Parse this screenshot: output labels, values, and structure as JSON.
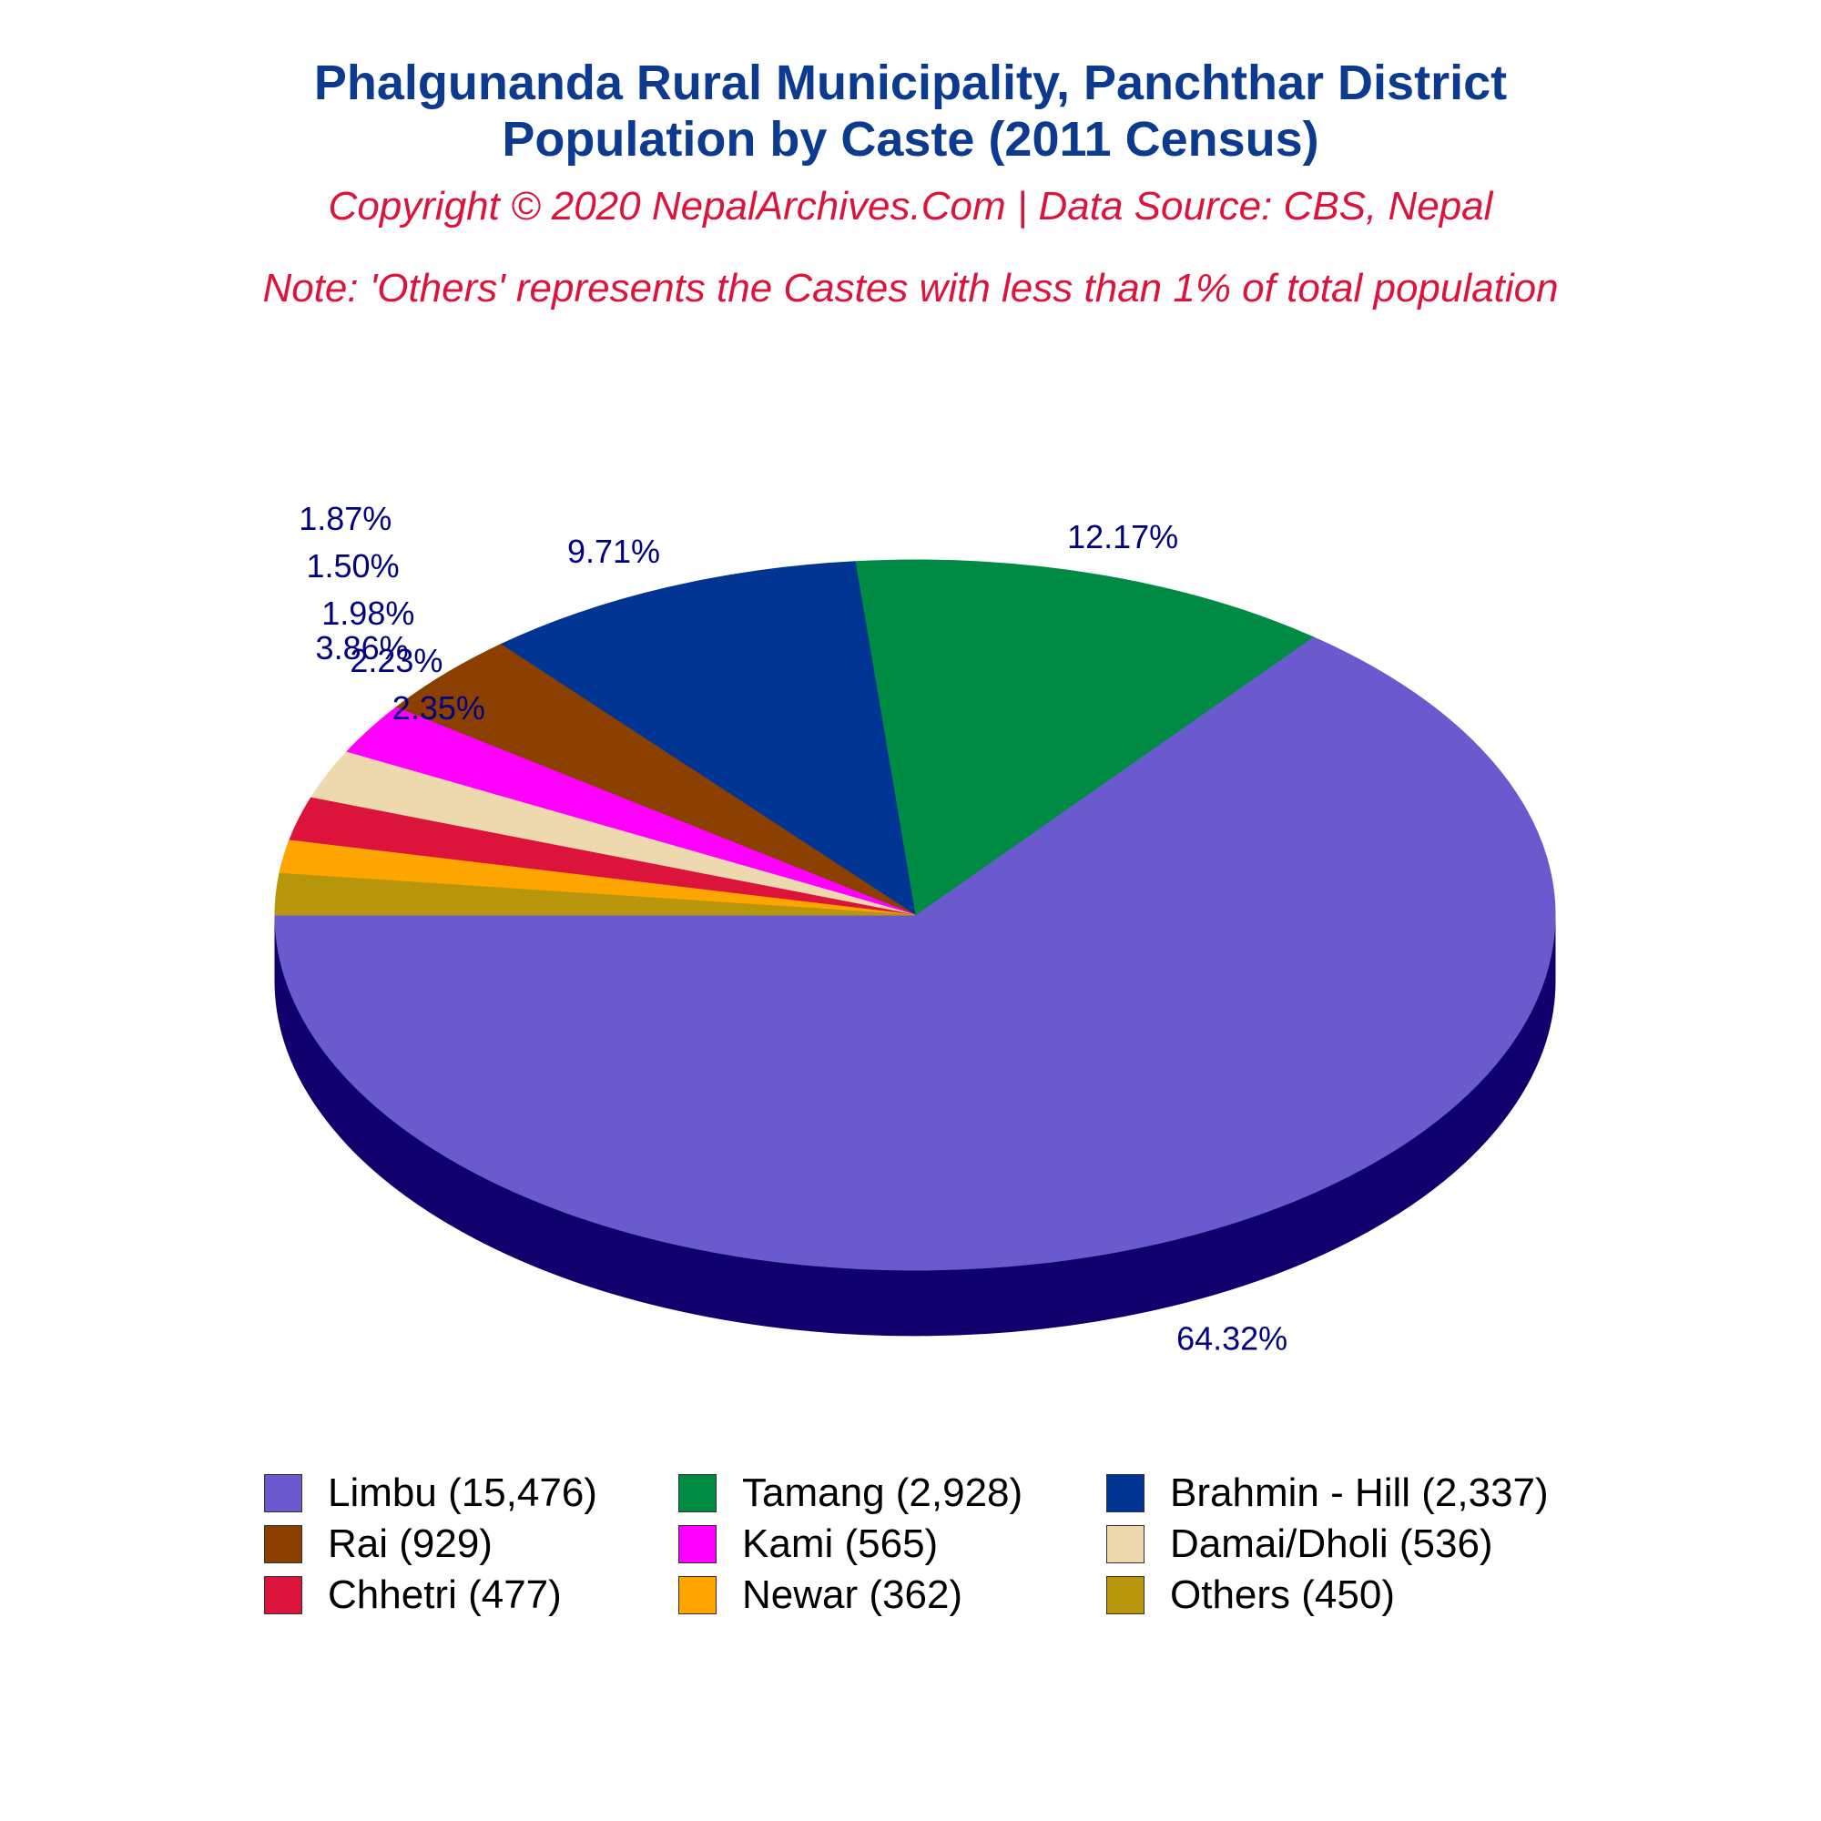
{
  "header": {
    "title_line1": "Phalgunanda Rural Municipality, Panchthar District",
    "title_line2": "Population by Caste (2011 Census)",
    "copyright": "Copyright © 2020 NepalArchives.Com | Data Source: CBS, Nepal",
    "note": "Note: 'Others' represents the Castes with less than 1% of total population"
  },
  "chart_data": {
    "type": "pie",
    "style": "3d",
    "legend_position": "bottom",
    "slices": [
      {
        "label": "Limbu (15,476)",
        "value": 15476,
        "pct_label": "64.32%",
        "color": "#6a5acd",
        "side_color": "#10006e"
      },
      {
        "label": "Tamang (2,928)",
        "value": 2928,
        "pct_label": "12.17%",
        "color": "#008b45",
        "side_color": "#002e00"
      },
      {
        "label": "Brahmin - Hill (2,337)",
        "value": 2337,
        "pct_label": "9.71%",
        "color": "#003594",
        "side_color": "#000036"
      },
      {
        "label": "Rai (929)",
        "value": 929,
        "pct_label": "3.86%",
        "color": "#8b4000",
        "side_color": "#2e0000"
      },
      {
        "label": "Kami (565)",
        "value": 565,
        "pct_label": "2.35%",
        "color": "#ff00ff",
        "side_color": "#a200a2"
      },
      {
        "label": "Damai/Dholi (536)",
        "value": 536,
        "pct_label": "2.23%",
        "color": "#eed8ae",
        "side_color": "#917b51"
      },
      {
        "label": "Chhetri (477)",
        "value": 477,
        "pct_label": "1.98%",
        "color": "#dc143c",
        "side_color": "#7f0000"
      },
      {
        "label": "Newar (362)",
        "value": 362,
        "pct_label": "1.50%",
        "color": "#ffa500",
        "side_color": "#a24800"
      },
      {
        "label": "Others (450)",
        "value": 450,
        "pct_label": "1.87%",
        "color": "#b8960c",
        "side_color": "#5b3900"
      }
    ]
  }
}
